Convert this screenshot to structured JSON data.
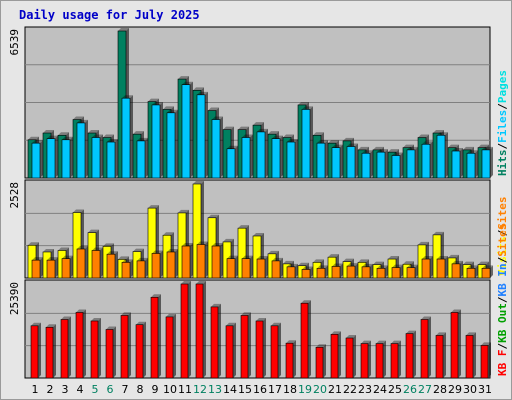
{
  "chart_data": {
    "type": "bar",
    "title": "Daily usage for July 2025",
    "colors": {
      "frame_bg": "#e6e6e6",
      "panel_bg": "#c0c0c0",
      "gridline": "#808080",
      "title": "#0000c8",
      "hits": "#008060",
      "files": "#00c8ff",
      "pages": "#00e0e0",
      "visits": "#ffff00",
      "sites": "#ff8000",
      "kbin": "#2080ff",
      "kbout": "#00a000",
      "kbf": "#ff0000",
      "weekday_tick": "#000000",
      "weekend_tick": "#008060"
    },
    "days": [
      "1",
      "2",
      "3",
      "4",
      "5",
      "6",
      "7",
      "8",
      "9",
      "10",
      "11",
      "12",
      "13",
      "14",
      "15",
      "16",
      "17",
      "18",
      "19",
      "20",
      "21",
      "22",
      "23",
      "24",
      "25",
      "26",
      "27",
      "28",
      "29",
      "30",
      "31"
    ],
    "weekend_days": [
      "5",
      "6",
      "12",
      "13",
      "19",
      "20",
      "26",
      "27"
    ],
    "panels": [
      {
        "id": "hits-files",
        "ylabel_max": "6539",
        "ymax": 6539,
        "right_legend": [
          {
            "text": "Hits",
            "color": "#008060"
          },
          {
            "text": "/",
            "color": "#000000"
          },
          {
            "text": "Files",
            "color": "#00c8ff"
          },
          {
            "text": "/",
            "color": "#000000"
          },
          {
            "text": "Pages",
            "color": "#00e0e0"
          }
        ],
        "series": [
          {
            "name": "Hits",
            "color": "#008060",
            "values": [
              1700,
              2000,
              1900,
              2600,
              2000,
              1800,
              6539,
              1950,
              3400,
              3050,
              4400,
              3900,
              3000,
              2150,
              2150,
              2350,
              1950,
              1800,
              3250,
              1900,
              1550,
              1650,
              1250,
              1250,
              1150,
              1350,
              1800,
              2000,
              1350,
              1250,
              1350
            ]
          },
          {
            "name": "Files",
            "color": "#00c8ff",
            "values": [
              1550,
              1750,
              1700,
              2450,
              1800,
              1600,
              3550,
              1650,
              3250,
              2900,
              4150,
              3700,
              2600,
              1300,
              1800,
              2050,
              1750,
              1600,
              3050,
              1550,
              1350,
              1400,
              1100,
              1150,
              1000,
              1250,
              1500,
              1900,
              1200,
              1100,
              1250
            ]
          }
        ]
      },
      {
        "id": "visits-sites",
        "ylabel_max": "2528",
        "ymax": 2528,
        "right_legend": [
          {
            "text": "Visits",
            "color": "#ffff00"
          },
          {
            "text": "/",
            "color": "#000000"
          },
          {
            "text": "Sites",
            "color": "#ff8000"
          }
        ],
        "series": [
          {
            "name": "Visits",
            "color": "#ffff00",
            "values": [
              880,
              700,
              740,
              1760,
              1220,
              850,
              500,
              710,
              1880,
              1150,
              1750,
              2528,
              1620,
              970,
              1340,
              1130,
              650,
              380,
              330,
              420,
              560,
              440,
              420,
              360,
              510,
              370,
              890,
              1160,
              540,
              360,
              360
            ]
          },
          {
            "name": "Sites",
            "color": "#ff8000",
            "values": [
              480,
              480,
              520,
              780,
              740,
              640,
              420,
              460,
              660,
              700,
              860,
              900,
              860,
              520,
              520,
              510,
              460,
              300,
              230,
              260,
              310,
              320,
              300,
              260,
              280,
              280,
              510,
              510,
              380,
              260,
              260
            ]
          }
        ]
      },
      {
        "id": "kbytes",
        "ylabel_max": "25390",
        "ymax": 25390,
        "right_legend": [
          {
            "text": "KB F",
            "color": "#ff0000"
          },
          {
            "text": "/",
            "color": "#000000"
          },
          {
            "text": "KB Out",
            "color": "#00a000"
          },
          {
            "text": "/",
            "color": "#000000"
          },
          {
            "text": "KB In",
            "color": "#2080ff"
          },
          {
            "text": "/",
            "color": "#000000"
          },
          {
            "text": "Sites",
            "color": "#ff8000"
          }
        ],
        "series": [
          {
            "name": "KB F",
            "color": "#ff0000",
            "values": [
              14100,
              13700,
              15800,
              17700,
              15400,
              13100,
              16900,
              14400,
              21800,
              16500,
              25390,
              25390,
              19200,
              14100,
              16900,
              15400,
              14100,
              9400,
              20200,
              8300,
              11800,
              10800,
              9300,
              9300,
              9300,
              12000,
              15800,
              11500,
              17700,
              11500,
              8800
            ]
          }
        ]
      }
    ]
  }
}
